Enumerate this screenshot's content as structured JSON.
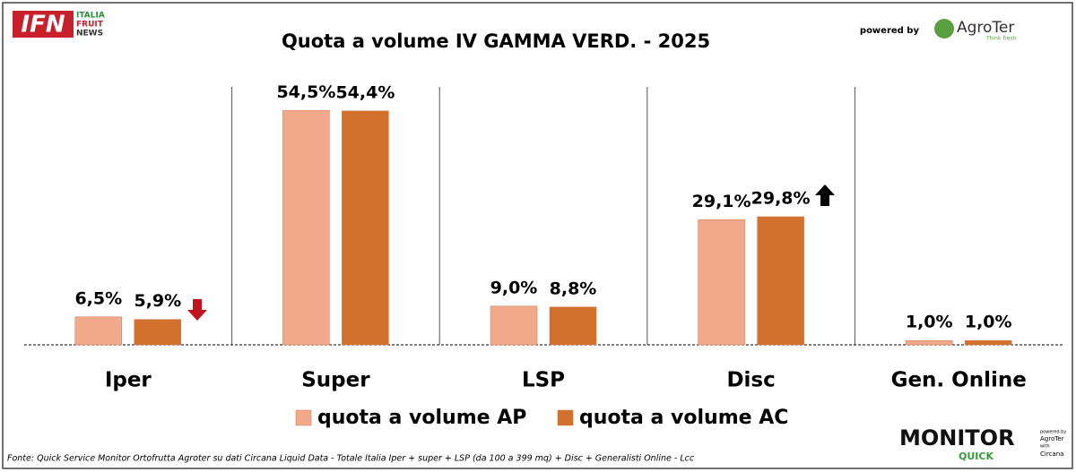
{
  "chart_data": {
    "type": "bar",
    "title": "Quota a volume IV GAMMA VERD. - 2025",
    "categories": [
      "Iper",
      "Super",
      "LSP",
      "Disc",
      "Gen. Online"
    ],
    "series": [
      {
        "name": "quota a volume AP",
        "color": "#f2a98b",
        "values": [
          6.5,
          54.5,
          9.0,
          29.1,
          1.0
        ],
        "value_labels": [
          "6,5%",
          "54,5%",
          "9,0%",
          "29,1%",
          "1,0%"
        ]
      },
      {
        "name": "quota a volume AC",
        "color": "#d2702e",
        "values": [
          5.9,
          54.4,
          8.8,
          29.8,
          1.0
        ],
        "value_labels": [
          "5,9%",
          "54,4%",
          "8,8%",
          "29,8%",
          "1,0%"
        ]
      }
    ],
    "ylim": [
      0,
      60
    ],
    "source": "Fonte: Quick Service Monitor Ortofrutta Agroter su dati Circana Liquid Data - Totale Italia Iper + super + LSP (da 100 a 399 mq) + Disc + Generalisti Online - Lcc"
  },
  "logos": {
    "ifn": "IFN",
    "ifn_lines": [
      "ITALIA",
      "FRUIT",
      "NEWS"
    ],
    "powered_by": "powered by",
    "agroter": "AgroTer",
    "agroter_tag": "Think fresh",
    "monitor": "MONITOR",
    "quick": "QUICK",
    "small": [
      "powered by",
      "AgroTer",
      "with",
      "Circana"
    ]
  }
}
